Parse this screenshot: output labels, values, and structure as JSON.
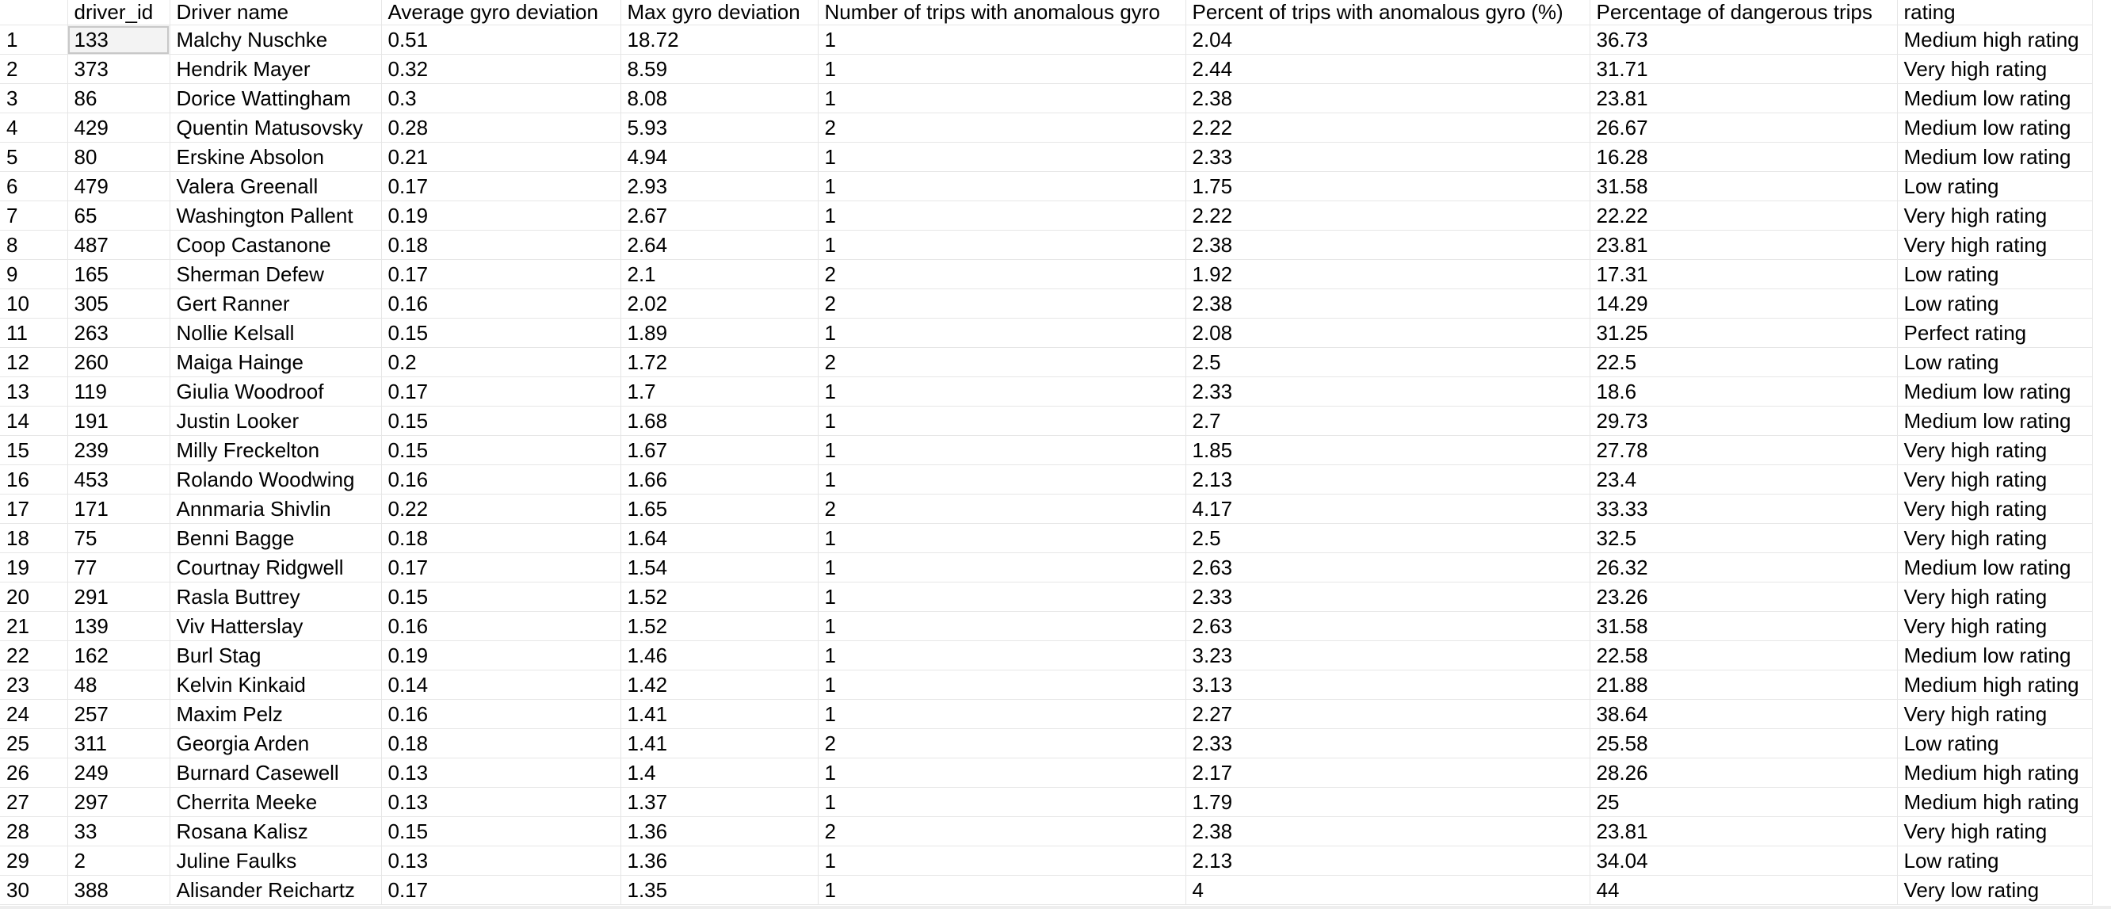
{
  "columns": [
    "driver_id",
    "Driver name",
    "Average gyro deviation",
    "Max gyro deviation",
    "Number of trips with anomalous gyro",
    "Percent of trips with anomalous gyro (%)",
    "Percentage of dangerous trips",
    "rating"
  ],
  "selected_cell": {
    "row": 0,
    "col": 0
  },
  "rows": [
    {
      "n": "1",
      "cells": [
        "133",
        "Malchy Nuschke",
        "0.51",
        "18.72",
        "1",
        "2.04",
        "36.73",
        "Medium high rating"
      ]
    },
    {
      "n": "2",
      "cells": [
        "373",
        "Hendrik Mayer",
        "0.32",
        "8.59",
        "1",
        "2.44",
        "31.71",
        "Very high rating"
      ]
    },
    {
      "n": "3",
      "cells": [
        "86",
        "Dorice Wattingham",
        "0.3",
        "8.08",
        "1",
        "2.38",
        "23.81",
        "Medium low rating"
      ]
    },
    {
      "n": "4",
      "cells": [
        "429",
        "Quentin Matusovsky",
        "0.28",
        "5.93",
        "2",
        "2.22",
        "26.67",
        "Medium low rating"
      ]
    },
    {
      "n": "5",
      "cells": [
        "80",
        "Erskine Absolon",
        "0.21",
        "4.94",
        "1",
        "2.33",
        "16.28",
        "Medium low rating"
      ]
    },
    {
      "n": "6",
      "cells": [
        "479",
        "Valera Greenall",
        "0.17",
        "2.93",
        "1",
        "1.75",
        "31.58",
        "Low rating"
      ]
    },
    {
      "n": "7",
      "cells": [
        "65",
        "Washington Pallent",
        "0.19",
        "2.67",
        "1",
        "2.22",
        "22.22",
        "Very high rating"
      ]
    },
    {
      "n": "8",
      "cells": [
        "487",
        "Coop Castanone",
        "0.18",
        "2.64",
        "1",
        "2.38",
        "23.81",
        "Very high rating"
      ]
    },
    {
      "n": "9",
      "cells": [
        "165",
        "Sherman Defew",
        "0.17",
        "2.1",
        "2",
        "1.92",
        "17.31",
        "Low rating"
      ]
    },
    {
      "n": "10",
      "cells": [
        "305",
        "Gert Ranner",
        "0.16",
        "2.02",
        "2",
        "2.38",
        "14.29",
        "Low rating"
      ]
    },
    {
      "n": "11",
      "cells": [
        "263",
        "Nollie Kelsall",
        "0.15",
        "1.89",
        "1",
        "2.08",
        "31.25",
        "Perfect rating"
      ]
    },
    {
      "n": "12",
      "cells": [
        "260",
        "Maiga Hainge",
        "0.2",
        "1.72",
        "2",
        "2.5",
        "22.5",
        "Low rating"
      ]
    },
    {
      "n": "13",
      "cells": [
        "119",
        "Giulia Woodroof",
        "0.17",
        "1.7",
        "1",
        "2.33",
        "18.6",
        "Medium low rating"
      ]
    },
    {
      "n": "14",
      "cells": [
        "191",
        "Justin Looker",
        "0.15",
        "1.68",
        "1",
        "2.7",
        "29.73",
        "Medium low rating"
      ]
    },
    {
      "n": "15",
      "cells": [
        "239",
        "Milly Freckelton",
        "0.15",
        "1.67",
        "1",
        "1.85",
        "27.78",
        "Very high rating"
      ]
    },
    {
      "n": "16",
      "cells": [
        "453",
        "Rolando Woodwing",
        "0.16",
        "1.66",
        "1",
        "2.13",
        "23.4",
        "Very high rating"
      ]
    },
    {
      "n": "17",
      "cells": [
        "171",
        "Annmaria Shivlin",
        "0.22",
        "1.65",
        "2",
        "4.17",
        "33.33",
        "Very high rating"
      ]
    },
    {
      "n": "18",
      "cells": [
        "75",
        "Benni Bagge",
        "0.18",
        "1.64",
        "1",
        "2.5",
        "32.5",
        "Very high rating"
      ]
    },
    {
      "n": "19",
      "cells": [
        "77",
        "Courtnay Ridgwell",
        "0.17",
        "1.54",
        "1",
        "2.63",
        "26.32",
        "Medium low rating"
      ]
    },
    {
      "n": "20",
      "cells": [
        "291",
        "Rasla Buttrey",
        "0.15",
        "1.52",
        "1",
        "2.33",
        "23.26",
        "Very high rating"
      ]
    },
    {
      "n": "21",
      "cells": [
        "139",
        "Viv Hatterslay",
        "0.16",
        "1.52",
        "1",
        "2.63",
        "31.58",
        "Very high rating"
      ]
    },
    {
      "n": "22",
      "cells": [
        "162",
        "Burl Stag",
        "0.19",
        "1.46",
        "1",
        "3.23",
        "22.58",
        "Medium low rating"
      ]
    },
    {
      "n": "23",
      "cells": [
        "48",
        "Kelvin Kinkaid",
        "0.14",
        "1.42",
        "1",
        "3.13",
        "21.88",
        "Medium high rating"
      ]
    },
    {
      "n": "24",
      "cells": [
        "257",
        "Maxim Pelz",
        "0.16",
        "1.41",
        "1",
        "2.27",
        "38.64",
        "Very high rating"
      ]
    },
    {
      "n": "25",
      "cells": [
        "311",
        "Georgia Arden",
        "0.18",
        "1.41",
        "2",
        "2.33",
        "25.58",
        "Low rating"
      ]
    },
    {
      "n": "26",
      "cells": [
        "249",
        "Burnard Casewell",
        "0.13",
        "1.4",
        "1",
        "2.17",
        "28.26",
        "Medium high rating"
      ]
    },
    {
      "n": "27",
      "cells": [
        "297",
        "Cherrita Meeke",
        "0.13",
        "1.37",
        "1",
        "1.79",
        "25",
        "Medium high rating"
      ]
    },
    {
      "n": "28",
      "cells": [
        "33",
        "Rosana Kalisz",
        "0.15",
        "1.36",
        "2",
        "2.38",
        "23.81",
        "Very high rating"
      ]
    },
    {
      "n": "29",
      "cells": [
        "2",
        "Juline Faulks",
        "0.13",
        "1.36",
        "1",
        "2.13",
        "34.04",
        "Low rating"
      ]
    },
    {
      "n": "30",
      "cells": [
        "388",
        "Alisander Reichartz",
        "0.17",
        "1.35",
        "1",
        "4",
        "44",
        "Very low rating"
      ]
    }
  ]
}
